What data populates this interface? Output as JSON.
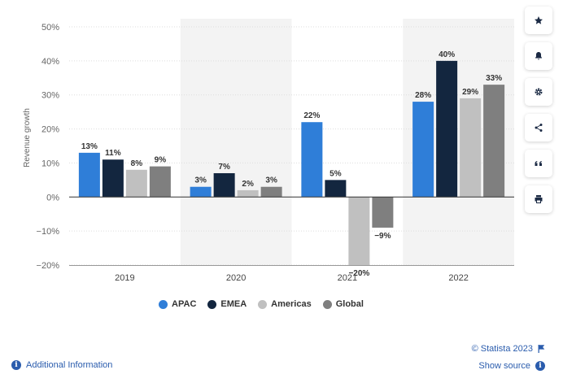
{
  "chart_data": {
    "type": "bar",
    "title": "",
    "xlabel": "",
    "ylabel": "Revenue growth",
    "ylim": [
      -20,
      50
    ],
    "yticks": [
      50,
      40,
      30,
      20,
      10,
      0,
      -10,
      -20
    ],
    "ytick_labels": [
      "50%",
      "40%",
      "30%",
      "20%",
      "10%",
      "0%",
      "−10%",
      "−20%"
    ],
    "categories": [
      "2019",
      "2020",
      "2021",
      "2022"
    ],
    "series": [
      {
        "name": "APAC",
        "color": "#2f7ed8",
        "values": [
          13,
          3,
          22,
          28
        ],
        "labels": [
          "13%",
          "3%",
          "22%",
          "28%"
        ]
      },
      {
        "name": "EMEA",
        "color": "#13263f",
        "values": [
          11,
          7,
          5,
          40
        ],
        "labels": [
          "11%",
          "7%",
          "5%",
          "40%"
        ]
      },
      {
        "name": "Americas",
        "color": "#c0c0c0",
        "values": [
          8,
          2,
          -20,
          29
        ],
        "labels": [
          "8%",
          "2%",
          "−20%",
          "29%"
        ]
      },
      {
        "name": "Global",
        "color": "#7f7f7f",
        "values": [
          9,
          3,
          -9,
          33
        ],
        "labels": [
          "9%",
          "3%",
          "−9%",
          "33%"
        ]
      }
    ],
    "grid": true,
    "legend_position": "bottom"
  },
  "legend": {
    "items": [
      {
        "label": "APAC",
        "color": "#2f7ed8"
      },
      {
        "label": "EMEA",
        "color": "#13263f"
      },
      {
        "label": "Americas",
        "color": "#c0c0c0"
      },
      {
        "label": "Global",
        "color": "#7f7f7f"
      }
    ]
  },
  "sidebar": {
    "buttons": [
      {
        "icon": "star-icon"
      },
      {
        "icon": "bell-icon"
      },
      {
        "icon": "gear-icon"
      },
      {
        "icon": "share-icon"
      },
      {
        "icon": "quote-icon"
      },
      {
        "icon": "print-icon"
      }
    ]
  },
  "footer": {
    "credit": "© Statista 2023",
    "show_source": "Show source",
    "additional_info": "Additional Information"
  }
}
